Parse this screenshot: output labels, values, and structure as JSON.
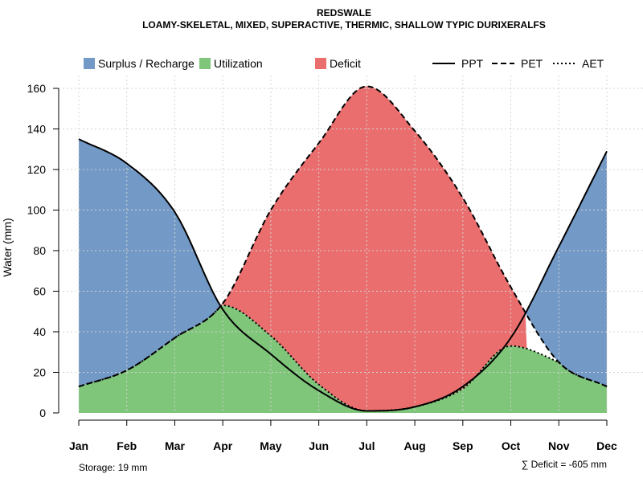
{
  "chart_data": {
    "type": "area",
    "title": "REDSWALE",
    "subtitle": "LOAMY-SKELETAL, MIXED, SUPERACTIVE, THERMIC, SHALLOW TYPIC DURIXERALFS",
    "xlabel": "",
    "ylabel": "Water (mm)",
    "ylim": [
      0,
      168
    ],
    "yticks": [
      0,
      20,
      40,
      60,
      80,
      100,
      120,
      140,
      160
    ],
    "categories": [
      "Jan",
      "Feb",
      "Mar",
      "Apr",
      "May",
      "Jun",
      "Jul",
      "Aug",
      "Sep",
      "Oct",
      "Nov",
      "Dec"
    ],
    "series": [
      {
        "name": "PPT",
        "style": "solid",
        "values": [
          135,
          123,
          99,
          51,
          29,
          11,
          1,
          3,
          13,
          37,
          82,
          129
        ]
      },
      {
        "name": "PET",
        "style": "dashed",
        "values": [
          13,
          21,
          37,
          54,
          100,
          133,
          161,
          139,
          106,
          62,
          25,
          13
        ]
      },
      {
        "name": "AET",
        "style": "dotted",
        "values": [
          13,
          21,
          37,
          53,
          38,
          14,
          1,
          3,
          12,
          33,
          25,
          13
        ]
      }
    ],
    "areas": [
      {
        "name": "Surplus / Recharge",
        "color": "#7399C6"
      },
      {
        "name": "Utilization",
        "color": "#7FC57A"
      },
      {
        "name": "Deficit",
        "color": "#EB6E6E"
      }
    ],
    "grid": true,
    "legend_position": "top"
  },
  "footer": {
    "storage": "Storage: 19 mm",
    "deficit": "∑ Deficit = -605 mm"
  }
}
